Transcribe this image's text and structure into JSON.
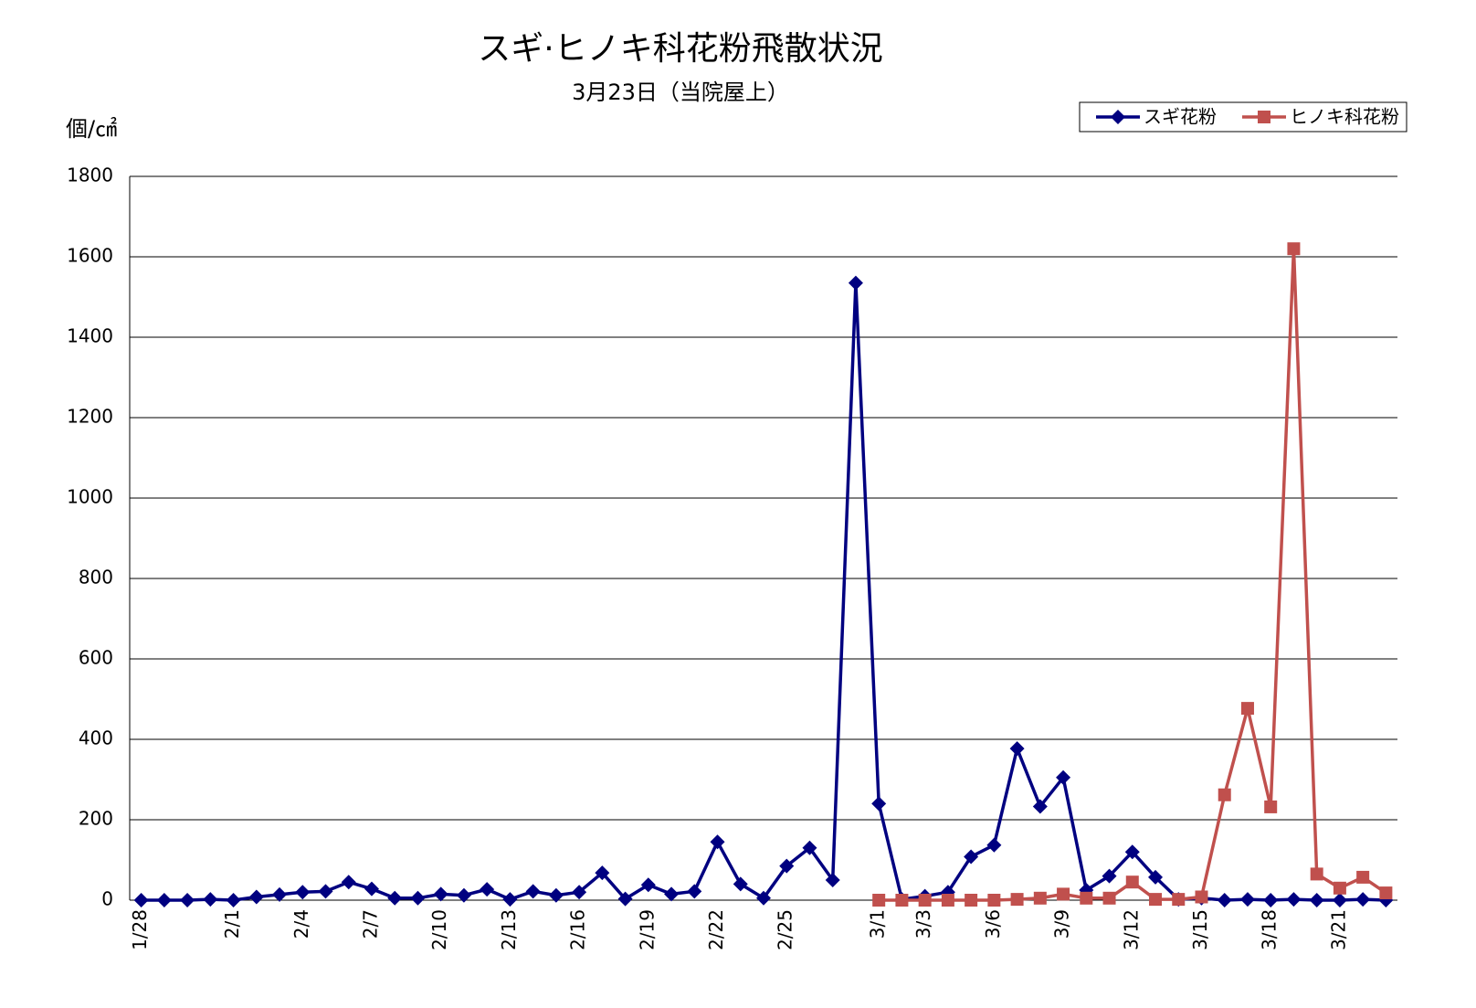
{
  "chart_data": {
    "type": "line",
    "title": "スギ·ヒノキ科花粉飛散状況",
    "subtitle": "3月23日（当院屋上）",
    "y_label": "個/㎠",
    "categories": [
      "1/28",
      null,
      null,
      null,
      "2/1",
      null,
      null,
      "2/4",
      null,
      null,
      "2/7",
      null,
      null,
      "2/10",
      null,
      null,
      "2/13",
      null,
      null,
      "2/16",
      null,
      null,
      "2/19",
      null,
      null,
      "2/22",
      null,
      null,
      "2/25",
      null,
      null,
      null,
      "3/1",
      null,
      "3/3",
      null,
      null,
      "3/6",
      null,
      null,
      "3/9",
      null,
      null,
      "3/12",
      null,
      null,
      "3/15",
      null,
      null,
      "3/18",
      null,
      null,
      "3/21",
      null,
      null
    ],
    "series": [
      {
        "name": "スギ花粉",
        "color": "#000080",
        "marker": "diamond",
        "values": [
          0,
          0,
          0,
          2,
          0,
          8,
          14,
          20,
          22,
          45,
          28,
          5,
          5,
          15,
          12,
          27,
          2,
          22,
          12,
          20,
          68,
          3,
          38,
          15,
          22,
          145,
          40,
          5,
          85,
          130,
          50,
          1535,
          240,
          2,
          10,
          20,
          108,
          137,
          377,
          233,
          305,
          25,
          60,
          120,
          57,
          2,
          5,
          0,
          2,
          0,
          2,
          0,
          0,
          2,
          0
        ]
      },
      {
        "name": "ヒノキ科花粉",
        "color": "#c0504d",
        "marker": "square",
        "values": [
          null,
          null,
          null,
          null,
          null,
          null,
          null,
          null,
          null,
          null,
          null,
          null,
          null,
          null,
          null,
          null,
          null,
          null,
          null,
          null,
          null,
          null,
          null,
          null,
          null,
          null,
          null,
          null,
          null,
          null,
          null,
          null,
          0,
          0,
          0,
          0,
          0,
          0,
          2,
          5,
          15,
          5,
          5,
          45,
          2,
          2,
          8,
          262,
          477,
          232,
          1620,
          65,
          30,
          57,
          18
        ]
      }
    ],
    "ylim": [
      0,
      1800
    ],
    "yticks": [
      0,
      200,
      400,
      600,
      800,
      1000,
      1200,
      1400,
      1600,
      1800
    ],
    "grid": true,
    "legend": "top-right"
  }
}
